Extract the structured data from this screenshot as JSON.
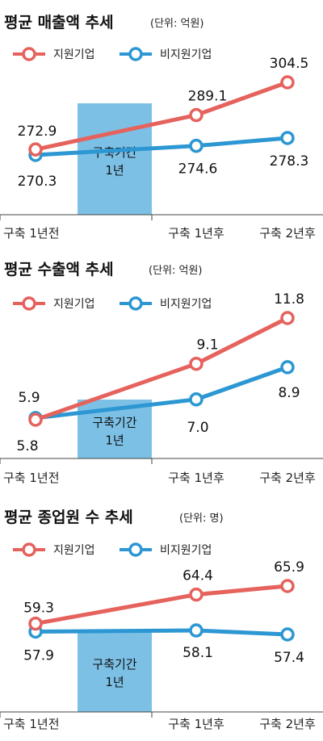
{
  "colors": {
    "support": "#e5625d",
    "nonsupport": "#2c97d2",
    "band": "#7cc0e6",
    "axis": "#444444"
  },
  "chart_data": [
    {
      "type": "line",
      "title": "평균 매출액 추세",
      "unit": "(단위: 억원)",
      "categories": [
        "구축 1년전",
        "구축 1년후",
        "구축 2년후"
      ],
      "band_label": [
        "구축기간",
        "1년"
      ],
      "series": [
        {
          "name": "지원기업",
          "values": [
            272.9,
            289.1,
            304.5
          ],
          "labels": [
            "272.9",
            "289.1",
            "304.5"
          ]
        },
        {
          "name": "비지원기업",
          "values": [
            270.3,
            274.6,
            278.3
          ],
          "labels": [
            "270.3",
            "274.6",
            "278.3"
          ]
        }
      ]
    },
    {
      "type": "line",
      "title": "평균 수출액 추세",
      "unit": "(단위: 억원)",
      "categories": [
        "구축 1년전",
        "구축 1년후",
        "구축 2년후"
      ],
      "band_label": [
        "구축기간",
        "1년"
      ],
      "series": [
        {
          "name": "지원기업",
          "values": [
            5.8,
            9.1,
            11.8
          ],
          "labels": [
            "5.8",
            "9.1",
            "11.8"
          ]
        },
        {
          "name": "비지원기업",
          "values": [
            5.9,
            7.0,
            8.9
          ],
          "labels": [
            "5.9",
            "7.0",
            "8.9"
          ]
        }
      ]
    },
    {
      "type": "line",
      "title": "평균 종업원 수 추세",
      "unit": "(단위: 명)",
      "categories": [
        "구축 1년전",
        "구축 1년후",
        "구축 2년후"
      ],
      "band_label": [
        "구축기간",
        "1년"
      ],
      "series": [
        {
          "name": "지원기업",
          "values": [
            59.3,
            64.4,
            65.9
          ],
          "labels": [
            "59.3",
            "64.4",
            "65.9"
          ]
        },
        {
          "name": "비지원기업",
          "values": [
            57.9,
            58.1,
            57.4
          ],
          "labels": [
            "57.9",
            "58.1",
            "57.4"
          ]
        }
      ]
    }
  ]
}
